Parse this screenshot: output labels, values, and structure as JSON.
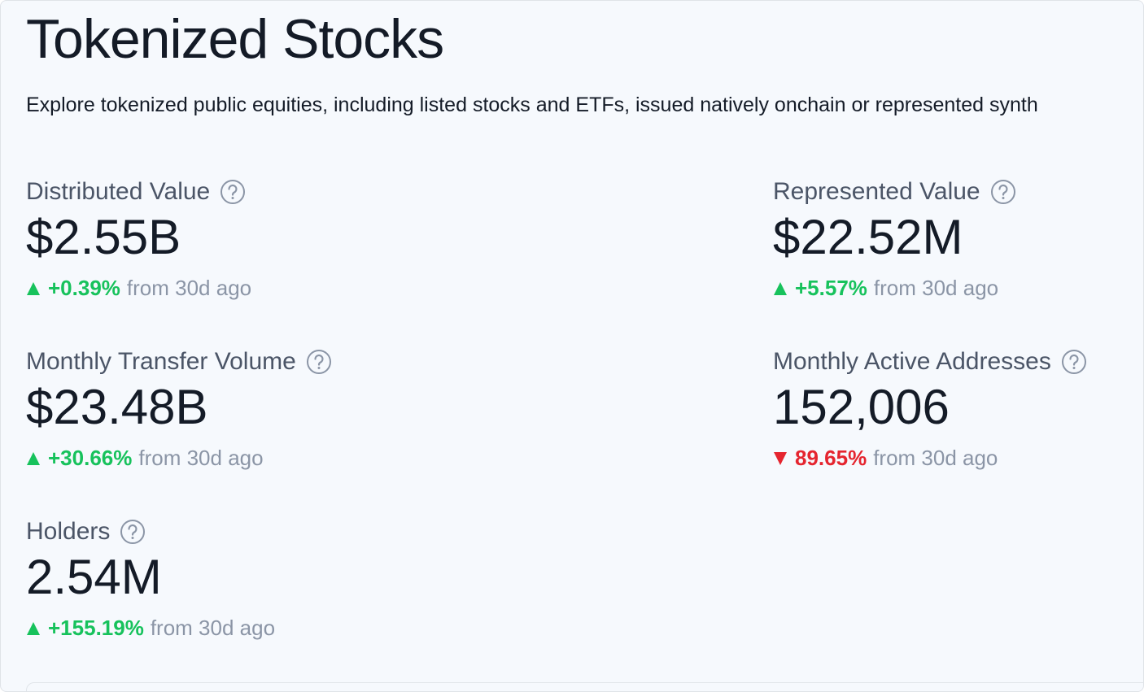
{
  "header": {
    "title": "Tokenized Stocks",
    "subtitle": "Explore tokenized public equities, including listed stocks and ETFs, issued natively onchain or represented synth"
  },
  "metrics": [
    {
      "label": "Distributed Value",
      "value": "$2.55B",
      "change": "+0.39%",
      "period": "from 30d ago",
      "direction": "up"
    },
    {
      "label": "Represented Value",
      "value": "$22.52M",
      "change": "+5.57%",
      "period": "from 30d ago",
      "direction": "up"
    },
    {
      "label": "Monthly Transfer Volume",
      "value": "$23.48B",
      "change": "+30.66%",
      "period": "from 30d ago",
      "direction": "up"
    },
    {
      "label": "Monthly Active Addresses",
      "value": "152,006",
      "change": "89.65%",
      "period": "from 30d ago",
      "direction": "down"
    },
    {
      "label": "Holders",
      "value": "2.54M",
      "change": "+155.19%",
      "period": "from 30d ago",
      "direction": "up"
    }
  ]
}
